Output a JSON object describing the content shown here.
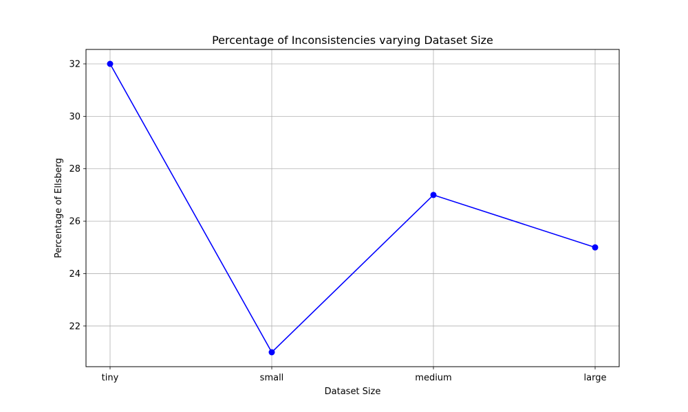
{
  "chart_data": {
    "type": "line",
    "title": "Percentage of Inconsistencies varying Dataset Size",
    "xlabel": "Dataset Size",
    "ylabel": "Percentage of Ellsberg",
    "categories": [
      "tiny",
      "small",
      "medium",
      "large"
    ],
    "series": [
      {
        "values": [
          32,
          21,
          27,
          25
        ],
        "color": "#0000ff",
        "marker": "circle"
      }
    ],
    "ylim": [
      20.45,
      32.55
    ],
    "yticks": [
      22,
      24,
      26,
      28,
      30,
      32
    ],
    "grid": true
  }
}
